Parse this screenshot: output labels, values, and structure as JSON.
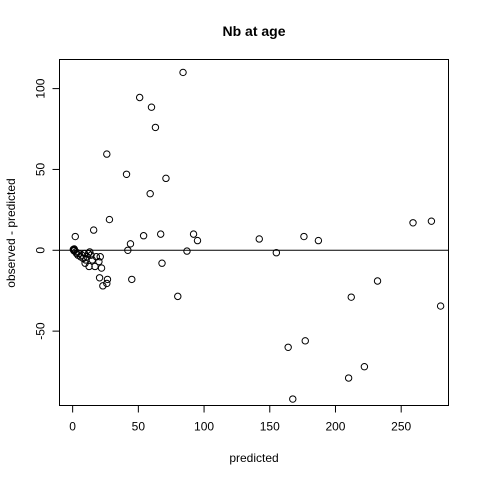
{
  "chart_data": {
    "type": "scatter",
    "title": "Nb at age",
    "xlabel": "predicted",
    "ylabel": "observed - predicted",
    "xlim": [
      -10,
      286
    ],
    "ylim": [
      -96,
      118
    ],
    "xticks": [
      0,
      50,
      100,
      150,
      200,
      250
    ],
    "yticks": [
      -50,
      0,
      50,
      100
    ],
    "grid": false,
    "hline": 0,
    "points": [
      {
        "x": 0.5,
        "y": 0.5
      },
      {
        "x": 0.8,
        "y": 0.2
      },
      {
        "x": 1.0,
        "y": -0.3
      },
      {
        "x": 1.2,
        "y": 0.8
      },
      {
        "x": 1.5,
        "y": 0.0
      },
      {
        "x": 2.0,
        "y": 8.5
      },
      {
        "x": 2.5,
        "y": -1.0
      },
      {
        "x": 3.0,
        "y": -2.0
      },
      {
        "x": 4.0,
        "y": -3.0
      },
      {
        "x": 5.0,
        "y": -2.0
      },
      {
        "x": 6.0,
        "y": -4.0
      },
      {
        "x": 7.0,
        "y": -3.0
      },
      {
        "x": 8.0,
        "y": -5.0
      },
      {
        "x": 9.0,
        "y": -2.0
      },
      {
        "x": 9.5,
        "y": -8.0
      },
      {
        "x": 10.0,
        "y": -6.0
      },
      {
        "x": 11.0,
        "y": -4.0
      },
      {
        "x": 12.0,
        "y": -2.0
      },
      {
        "x": 12.5,
        "y": -10.0
      },
      {
        "x": 13.0,
        "y": -1.0
      },
      {
        "x": 14.0,
        "y": -3.0
      },
      {
        "x": 15.0,
        "y": -6.0
      },
      {
        "x": 16.0,
        "y": 12.5
      },
      {
        "x": 17.0,
        "y": -10.0
      },
      {
        "x": 18.0,
        "y": -4.0
      },
      {
        "x": 20.0,
        "y": -7.0
      },
      {
        "x": 20.5,
        "y": -17.0
      },
      {
        "x": 21.0,
        "y": -4.0
      },
      {
        "x": 22.0,
        "y": -11.0
      },
      {
        "x": 23.0,
        "y": -22.0
      },
      {
        "x": 26.0,
        "y": -20.5
      },
      {
        "x": 26.5,
        "y": -18.0
      },
      {
        "x": 26.0,
        "y": 59.5
      },
      {
        "x": 28.0,
        "y": 19.0
      },
      {
        "x": 41.0,
        "y": 47.0
      },
      {
        "x": 42.0,
        "y": 0.0
      },
      {
        "x": 44.0,
        "y": 4.0
      },
      {
        "x": 45.0,
        "y": -18.0
      },
      {
        "x": 51.0,
        "y": 94.5
      },
      {
        "x": 54.0,
        "y": 9.0
      },
      {
        "x": 59.0,
        "y": 35.0
      },
      {
        "x": 60.0,
        "y": 88.5
      },
      {
        "x": 63.0,
        "y": 76.0
      },
      {
        "x": 67.0,
        "y": 10.0
      },
      {
        "x": 68.0,
        "y": -8.0
      },
      {
        "x": 71.0,
        "y": 44.5
      },
      {
        "x": 80.0,
        "y": -28.5
      },
      {
        "x": 84.0,
        "y": 110.0
      },
      {
        "x": 87.0,
        "y": -0.5
      },
      {
        "x": 92.0,
        "y": 10.0
      },
      {
        "x": 95.0,
        "y": 6.0
      },
      {
        "x": 142.0,
        "y": 7.0
      },
      {
        "x": 155.0,
        "y": -1.5
      },
      {
        "x": 164.0,
        "y": -60.0
      },
      {
        "x": 167.5,
        "y": -92.0
      },
      {
        "x": 176.0,
        "y": 8.5
      },
      {
        "x": 177.0,
        "y": -56.0
      },
      {
        "x": 187.0,
        "y": 6.0
      },
      {
        "x": 210.0,
        "y": -79.0
      },
      {
        "x": 212.0,
        "y": -29.0
      },
      {
        "x": 222.0,
        "y": -72.0
      },
      {
        "x": 232.0,
        "y": -19.0
      },
      {
        "x": 259.0,
        "y": 17.0
      },
      {
        "x": 273.0,
        "y": 18.0
      },
      {
        "x": 280.0,
        "y": -34.5
      }
    ]
  }
}
